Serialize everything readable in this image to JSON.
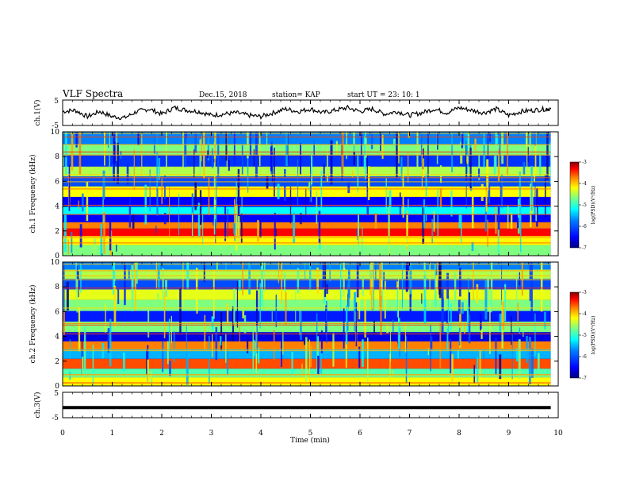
{
  "header": {
    "title": "VLF Spectra",
    "date": "Dec.15, 2018",
    "station": "station= KAP",
    "start": "start  UT =   23: 10: 1"
  },
  "chart_data": [
    {
      "type": "line",
      "name": "ch1-waveform",
      "ylabel": "ch.1(V)",
      "ylim": [
        -5,
        5
      ],
      "yticks": [
        "5",
        "-5"
      ],
      "x": [
        0,
        0.25,
        0.5,
        0.75,
        1.0,
        1.25,
        1.5,
        1.75,
        2.0,
        2.25,
        2.5,
        2.75,
        3.0,
        3.25,
        3.5,
        3.75,
        4.0,
        4.25,
        4.5,
        4.75,
        5.0,
        5.25,
        5.5,
        5.75,
        6.0,
        6.25,
        6.5,
        6.75,
        7.0,
        7.25,
        7.5,
        7.75,
        8.0,
        8.25,
        8.5,
        8.75,
        9.0,
        9.25,
        9.5,
        9.75,
        9.85
      ],
      "y": [
        0.5,
        1.0,
        -1.5,
        0.5,
        -1.5,
        -2.0,
        0.5,
        1.5,
        -0.5,
        2.0,
        1.0,
        0.5,
        -1.0,
        -0.5,
        0.0,
        -1.0,
        -1.5,
        0.0,
        1.5,
        0.5,
        1.5,
        0.0,
        1.0,
        2.0,
        0.5,
        1.5,
        -0.5,
        0.5,
        -1.0,
        0.0,
        1.5,
        0.0,
        2.0,
        1.0,
        0.0,
        1.5,
        -1.0,
        0.5,
        1.0,
        1.5,
        1.5
      ]
    },
    {
      "type": "heatmap",
      "name": "ch1-spectrogram",
      "ylabel": "ch.1 Frequency (kHz)",
      "ylim": [
        0,
        10
      ],
      "yticks": [
        "0",
        "2",
        "4",
        "6",
        "8",
        "10"
      ],
      "colorbar": {
        "label": "log(PSD)(V²/Hz)",
        "range": [
          -7,
          -3
        ],
        "ticks": [
          "-3",
          "-4",
          "-5",
          "-6",
          "-7"
        ]
      },
      "bands": [
        {
          "freq": 0.5,
          "level": -5.0
        },
        {
          "freq": 1.2,
          "level": -4.5
        },
        {
          "freq": 2.0,
          "level": -3.5
        },
        {
          "freq": 2.4,
          "level": -4.0
        },
        {
          "freq": 3.0,
          "level": -6.5
        },
        {
          "freq": 3.6,
          "level": -5.5
        },
        {
          "freq": 4.3,
          "level": -6.5
        },
        {
          "freq": 5.2,
          "level": -4.5
        },
        {
          "freq": 6.0,
          "level": -6.2
        },
        {
          "freq": 6.8,
          "level": -4.8
        },
        {
          "freq": 7.6,
          "level": -6.3
        },
        {
          "freq": 8.6,
          "level": -5.0
        },
        {
          "freq": 9.4,
          "level": -6.0
        }
      ]
    },
    {
      "type": "heatmap",
      "name": "ch2-spectrogram",
      "ylabel": "ch.2 Frequency (kHz)",
      "ylim": [
        0,
        10
      ],
      "yticks": [
        "0",
        "2",
        "4",
        "6",
        "8",
        "10"
      ],
      "colorbar": {
        "label": "log(PSD)(V²/Hz)",
        "range": [
          -7,
          -3
        ],
        "ticks": [
          "-3",
          "-4",
          "-5",
          "-6",
          "-7"
        ]
      },
      "bands": [
        {
          "freq": 0.4,
          "level": -4.5
        },
        {
          "freq": 1.0,
          "level": -5.2
        },
        {
          "freq": 1.8,
          "level": -3.8
        },
        {
          "freq": 2.6,
          "level": -5.8
        },
        {
          "freq": 3.3,
          "level": -4.0
        },
        {
          "freq": 3.9,
          "level": -6.6
        },
        {
          "freq": 4.8,
          "level": -5.0
        },
        {
          "freq": 5.6,
          "level": -6.4
        },
        {
          "freq": 6.5,
          "level": -5.0
        },
        {
          "freq": 7.4,
          "level": -4.6
        },
        {
          "freq": 8.2,
          "level": -6.2
        },
        {
          "freq": 9.1,
          "level": -4.8
        },
        {
          "freq": 9.7,
          "level": -6.0
        }
      ]
    },
    {
      "type": "line",
      "name": "ch3-waveform",
      "ylabel": "ch.3(V)",
      "ylim": [
        -5,
        5
      ],
      "yticks": [
        "5",
        "-5"
      ],
      "x": [
        0,
        9.85
      ],
      "y": [
        -1,
        -1
      ]
    }
  ],
  "xaxis": {
    "label": "Time  (min)",
    "range": [
      0,
      10
    ],
    "ticks": [
      "0",
      "1",
      "2",
      "3",
      "4",
      "5",
      "6",
      "7",
      "8",
      "9",
      "10"
    ]
  },
  "colors": {
    "colormap": [
      "#00007f",
      "#0000ff",
      "#007fff",
      "#00ffff",
      "#7fff7f",
      "#ffff00",
      "#ff7f00",
      "#ff0000",
      "#7f0000"
    ]
  }
}
